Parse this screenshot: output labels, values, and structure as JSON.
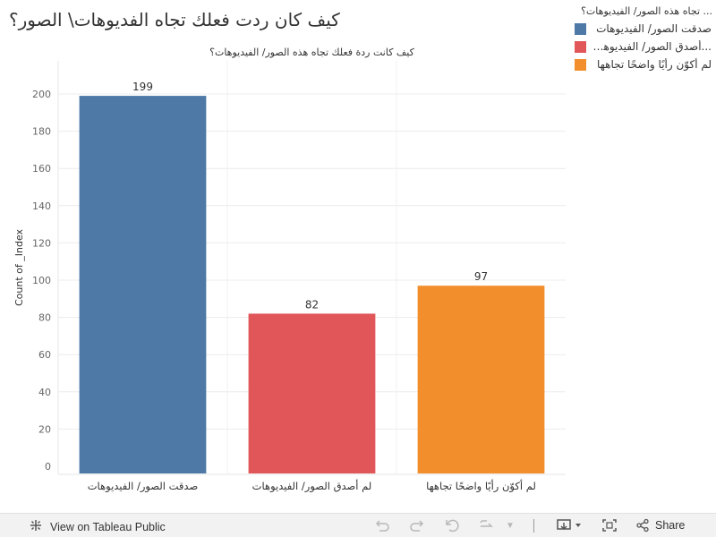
{
  "title": "كيف كان ردت فعلك تجاه الفديوهات\\ الصور؟",
  "chart_data": {
    "type": "bar",
    "title": "كيف كانت ردة فعلك تجاه هذه الصور/ الفيديوهات؟",
    "xlabel": "",
    "ylabel": "Count of _Index",
    "categories": [
      "صدقت الصور/ الفيديوهات",
      "لم أصدق الصور/ الفيديوهات",
      "لم أكوّن رأيًا واضحًا تجاهها"
    ],
    "values": [
      199,
      82,
      97
    ],
    "colors": [
      "#4e79a7",
      "#e15759",
      "#f28e2b"
    ],
    "ylim": [
      0,
      210
    ],
    "yticks": [
      0,
      20,
      40,
      60,
      80,
      100,
      120,
      140,
      160,
      180,
      200
    ],
    "grid": true,
    "legend_position": "top-right"
  },
  "legend": {
    "title": "... تجاه هذه الصور/ الفيديوهات؟",
    "items": [
      {
        "label": "صدقت الصور/ الفيديوهات",
        "color": "#4e79a7"
      },
      {
        "label": "...أصدق الصور/ الفيديوهات",
        "color": "#e15759"
      },
      {
        "label": "لم أكوّن رأيًا واضحًا تجاهها",
        "color": "#f28e2b"
      }
    ]
  },
  "toolbar": {
    "view_label": "View on Tableau Public",
    "share_label": "Share",
    "icons": [
      "tableau-logo-icon",
      "undo-icon",
      "redo-icon",
      "revert-icon",
      "refresh-icon",
      "dropdown-icon",
      "download-icon",
      "fullscreen-icon",
      "share-icon"
    ]
  }
}
